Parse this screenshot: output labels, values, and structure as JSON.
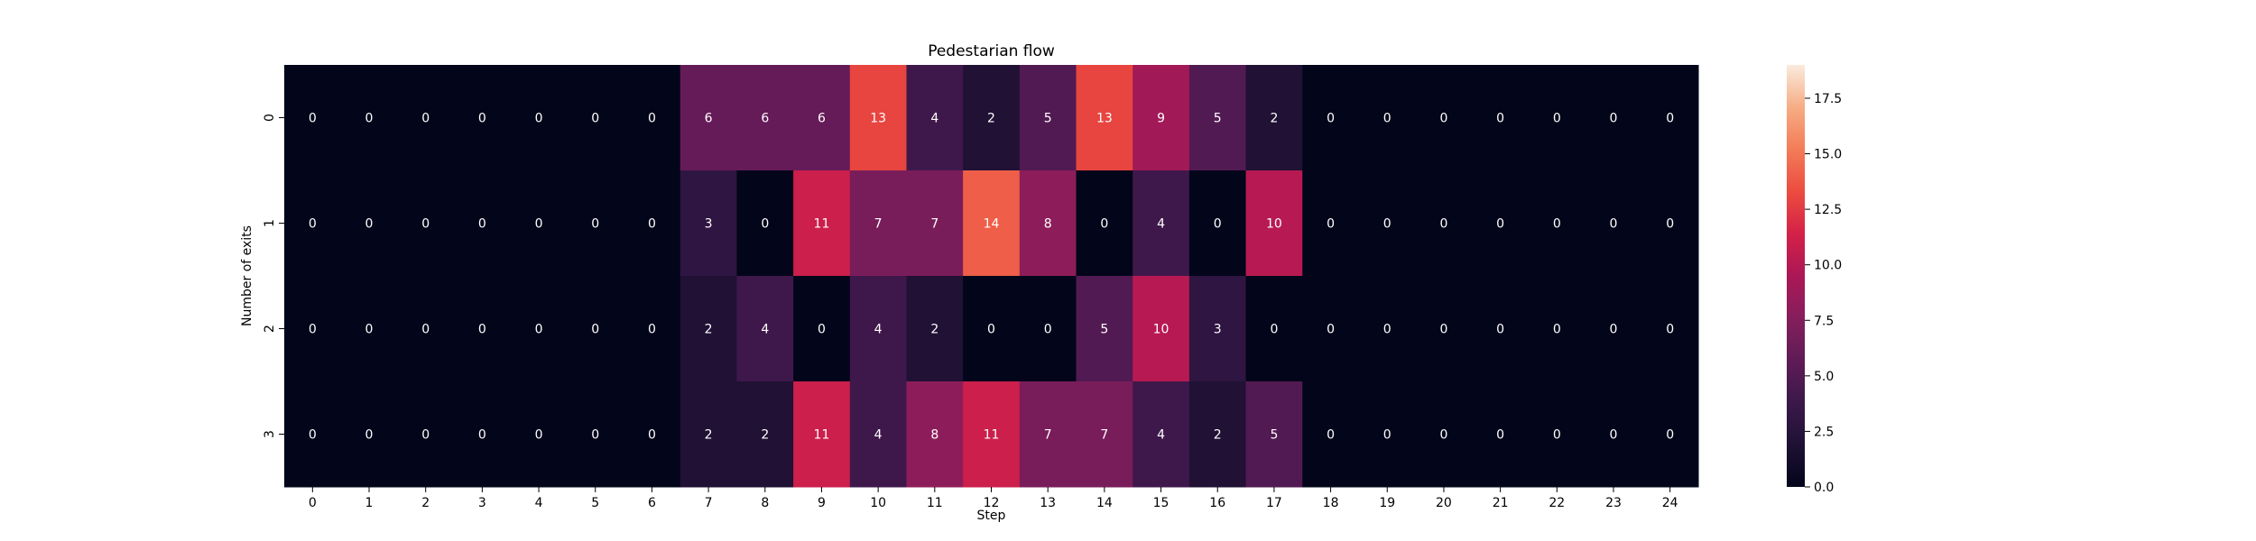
{
  "chart_data": {
    "type": "heatmap",
    "title": "Pedestarian flow",
    "xlabel": "Step",
    "ylabel": "Number of exits",
    "x_categories": [
      "0",
      "1",
      "2",
      "3",
      "4",
      "5",
      "6",
      "7",
      "8",
      "9",
      "10",
      "11",
      "12",
      "13",
      "14",
      "15",
      "16",
      "17",
      "18",
      "19",
      "20",
      "21",
      "22",
      "23",
      "24"
    ],
    "y_categories": [
      "0",
      "1",
      "2",
      "3"
    ],
    "values": [
      [
        0,
        0,
        0,
        0,
        0,
        0,
        0,
        6,
        6,
        6,
        13,
        4,
        2,
        5,
        13,
        9,
        5,
        2,
        0,
        0,
        0,
        0,
        0,
        0,
        0
      ],
      [
        0,
        0,
        0,
        0,
        0,
        0,
        0,
        3,
        0,
        11,
        7,
        7,
        14,
        8,
        0,
        4,
        0,
        10,
        0,
        0,
        0,
        0,
        0,
        0,
        0
      ],
      [
        0,
        0,
        0,
        0,
        0,
        0,
        0,
        2,
        4,
        0,
        4,
        2,
        0,
        0,
        5,
        10,
        3,
        0,
        0,
        0,
        0,
        0,
        0,
        0,
        0
      ],
      [
        0,
        0,
        0,
        0,
        0,
        0,
        0,
        2,
        2,
        11,
        4,
        8,
        11,
        7,
        7,
        4,
        2,
        5,
        0,
        0,
        0,
        0,
        0,
        0,
        0
      ]
    ],
    "colorbar": {
      "range": [
        0,
        19
      ],
      "ticks": [
        "0.0",
        "2.5",
        "5.0",
        "7.5",
        "10.0",
        "12.5",
        "15.0",
        "17.5"
      ],
      "colormap": "rocket"
    },
    "annotations": true,
    "grid": false,
    "legend": "colorbar-right"
  }
}
